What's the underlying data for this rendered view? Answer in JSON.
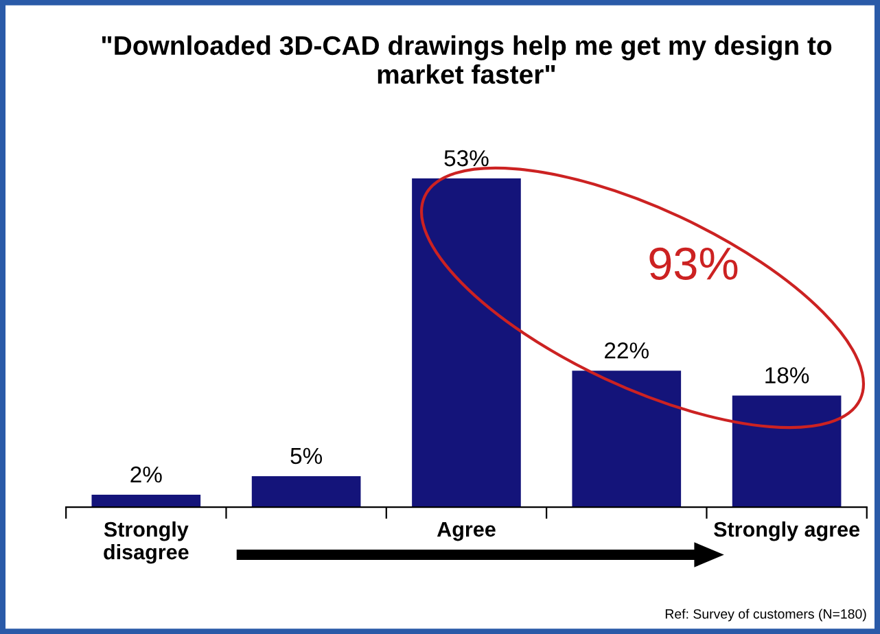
{
  "chart_data": {
    "type": "bar",
    "title": "\"Downloaded 3D-CAD drawings help me get my design to market faster\"",
    "categories": [
      "Strongly disagree",
      null,
      "Agree",
      null,
      "Strongly agree"
    ],
    "values": [
      2,
      5,
      53,
      22,
      18
    ],
    "value_labels": [
      "2%",
      "5%",
      "53%",
      "22%",
      "18%"
    ],
    "color": "#14147a",
    "annotations": [
      "93%",
      "Ref: Survey of customers (N=180)"
    ]
  }
}
